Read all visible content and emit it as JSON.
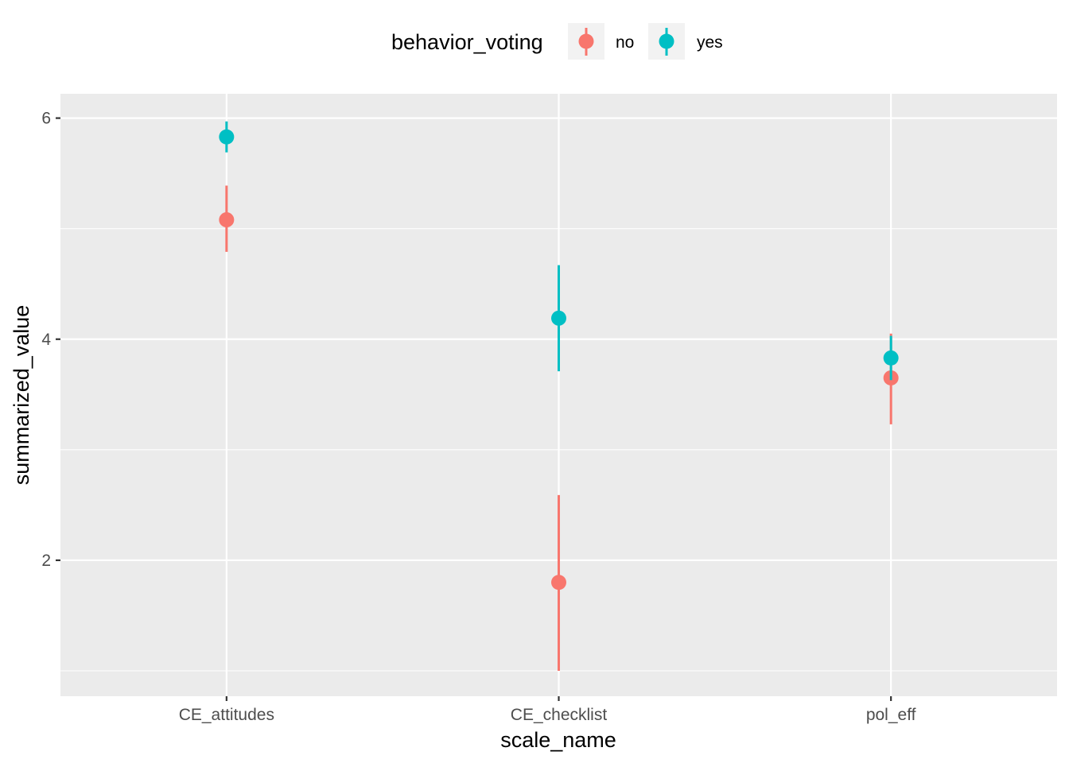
{
  "chart_data": {
    "type": "scatter",
    "subtype": "pointrange",
    "xlabel": "scale_name",
    "ylabel": "summarized_value",
    "categories": [
      "CE_attitudes",
      "CE_checklist",
      "pol_eff"
    ],
    "ylim": [
      0.77,
      6.22
    ],
    "yticks": [
      2,
      4,
      6
    ],
    "grid": true,
    "legend": {
      "title": "behavior_voting",
      "position": "top"
    },
    "series": [
      {
        "name": "no",
        "color": "#F8766D",
        "points": [
          {
            "x": "CE_attitudes",
            "y": 5.08,
            "ymin": 4.79,
            "ymax": 5.39
          },
          {
            "x": "CE_checklist",
            "y": 1.8,
            "ymin": 1.0,
            "ymax": 2.59
          },
          {
            "x": "pol_eff",
            "y": 3.65,
            "ymin": 3.23,
            "ymax": 4.05
          }
        ]
      },
      {
        "name": "yes",
        "color": "#00BFC4",
        "points": [
          {
            "x": "CE_attitudes",
            "y": 5.83,
            "ymin": 5.69,
            "ymax": 5.97
          },
          {
            "x": "CE_checklist",
            "y": 4.19,
            "ymin": 3.71,
            "ymax": 4.67
          },
          {
            "x": "pol_eff",
            "y": 3.83,
            "ymin": 3.63,
            "ymax": 4.03
          }
        ]
      }
    ]
  }
}
